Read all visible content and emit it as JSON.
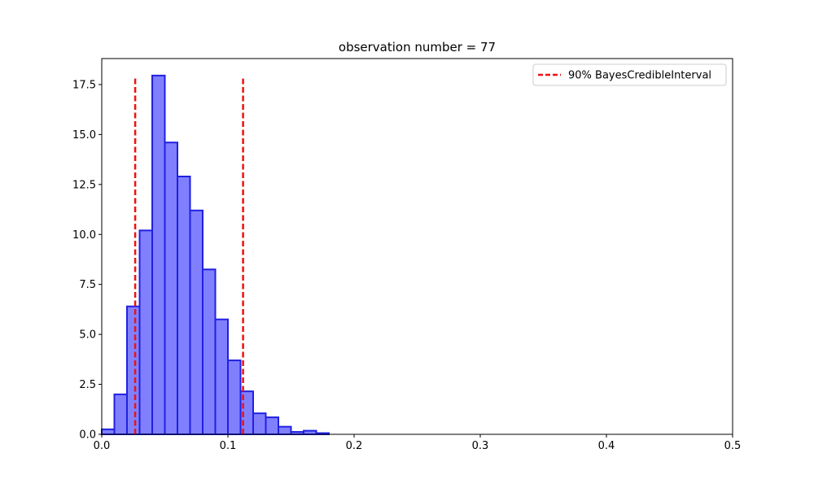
{
  "chart_data": {
    "type": "bar",
    "title": "observation number = 77",
    "xlabel": "",
    "ylabel": "",
    "xlim": [
      0,
      0.5
    ],
    "ylim": [
      0,
      18.8
    ],
    "grid": false,
    "legend_position": "top-right",
    "x_ticks": [
      "0.0",
      "0.1",
      "0.2",
      "0.3",
      "0.4",
      "0.5"
    ],
    "y_ticks": [
      "0.0",
      "2.5",
      "5.0",
      "7.5",
      "10.0",
      "12.5",
      "15.0",
      "17.5"
    ],
    "bins": [
      {
        "x0": 0.0,
        "x1": 0.01,
        "value": 0.25
      },
      {
        "x0": 0.01,
        "x1": 0.02,
        "value": 2.0
      },
      {
        "x0": 0.02,
        "x1": 0.03,
        "value": 6.4
      },
      {
        "x0": 0.03,
        "x1": 0.04,
        "value": 10.2
      },
      {
        "x0": 0.04,
        "x1": 0.05,
        "value": 17.95
      },
      {
        "x0": 0.05,
        "x1": 0.06,
        "value": 14.6
      },
      {
        "x0": 0.06,
        "x1": 0.07,
        "value": 12.9
      },
      {
        "x0": 0.07,
        "x1": 0.08,
        "value": 11.2
      },
      {
        "x0": 0.08,
        "x1": 0.09,
        "value": 8.25
      },
      {
        "x0": 0.09,
        "x1": 0.1,
        "value": 5.75
      },
      {
        "x0": 0.1,
        "x1": 0.11,
        "value": 3.7
      },
      {
        "x0": 0.11,
        "x1": 0.12,
        "value": 2.15
      },
      {
        "x0": 0.12,
        "x1": 0.13,
        "value": 1.05
      },
      {
        "x0": 0.13,
        "x1": 0.14,
        "value": 0.85
      },
      {
        "x0": 0.14,
        "x1": 0.15,
        "value": 0.38
      },
      {
        "x0": 0.15,
        "x1": 0.16,
        "value": 0.12
      },
      {
        "x0": 0.16,
        "x1": 0.17,
        "value": 0.18
      },
      {
        "x0": 0.17,
        "x1": 0.18,
        "value": 0.06
      }
    ],
    "credible_interval": {
      "label": "90% BayesCredibleInterval",
      "lower": 0.0265,
      "upper": 0.112,
      "line_top": 17.8
    },
    "colors": {
      "bar_fill": "#8080ff",
      "bar_edge": "#2020e0",
      "interval_line": "#ee1111"
    }
  }
}
